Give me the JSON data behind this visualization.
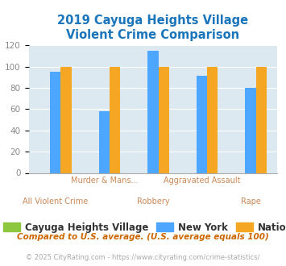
{
  "title": "2019 Cayuga Heights Village\nViolent Crime Comparison",
  "categories": [
    "All Violent Crime",
    "Murder & Mans...",
    "Robbery",
    "Aggravated Assault",
    "Rape"
  ],
  "upper_labels": [
    "",
    "Murder & Mans...",
    "",
    "Aggravated Assault",
    ""
  ],
  "lower_labels": [
    "All Violent Crime",
    "",
    "Robbery",
    "",
    "Rape"
  ],
  "series": {
    "Cayuga Heights Village": [
      0,
      0,
      0,
      0,
      0
    ],
    "New York": [
      95,
      58,
      115,
      91,
      80
    ],
    "National": [
      100,
      100,
      100,
      100,
      100
    ]
  },
  "colors": {
    "Cayuga Heights Village": "#8dc63f",
    "New York": "#4da6ff",
    "National": "#f5a623"
  },
  "ylim": [
    0,
    120
  ],
  "yticks": [
    0,
    20,
    40,
    60,
    80,
    100,
    120
  ],
  "title_color": "#1a75bb",
  "title_fontsize": 10.5,
  "bg_color": "#dce9f0",
  "grid_color": "#ffffff",
  "footnote1": "Compared to U.S. average. (U.S. average equals 100)",
  "footnote2": "© 2025 CityRating.com - https://www.cityrating.com/crime-statistics/",
  "footnote1_color": "#cc6600",
  "footnote2_color": "#aaaaaa",
  "tick_label_color": "#cc8855",
  "ytick_label_color": "#888888",
  "legend_fontsize": 8.5,
  "bar_width": 0.22
}
